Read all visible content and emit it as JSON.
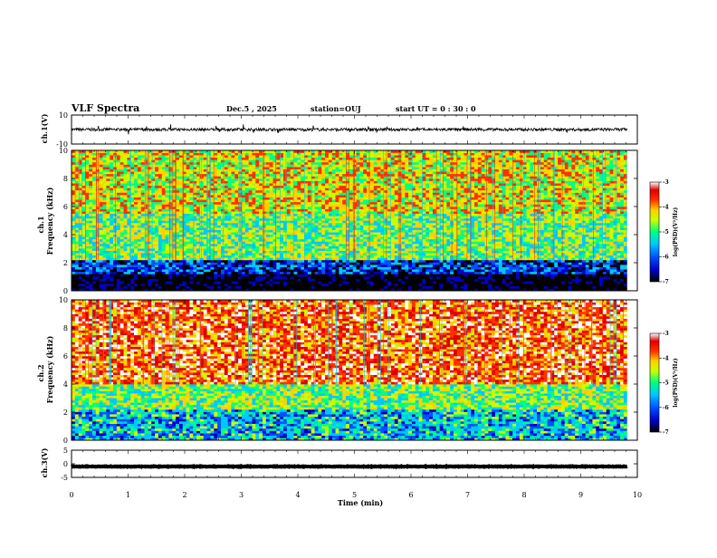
{
  "header": {
    "title": "VLF Spectra",
    "date": "Dec.5 , 2025",
    "station": "station=OUJ",
    "start": "start UT = 0 : 30 : 0"
  },
  "colors": {
    "scale": [
      "#000000",
      "#0000c8",
      "#0050ff",
      "#00c8ff",
      "#00ff80",
      "#c8ff00",
      "#ffd000",
      "#ff3000",
      "#e00000",
      "#ffffff"
    ]
  },
  "chart_data": [
    {
      "type": "line",
      "id": "ch1-waveform",
      "ylabel": "ch.1(V)",
      "ylim": [
        -10,
        10
      ],
      "yticks": [
        "10",
        "-10"
      ],
      "description_values": {
        "mean": 0,
        "amplitude": 1
      }
    },
    {
      "type": "heatmap",
      "id": "ch1-spectrogram",
      "ylabel": "ch.1 Frequency (kHz)",
      "ylim": [
        0,
        10
      ],
      "yticks": [
        "0",
        "2",
        "4",
        "6",
        "8",
        "10"
      ],
      "colorbar": {
        "label": "log(PSD)(V²/Hz)",
        "range": [
          -7,
          -3
        ],
        "ticks": [
          "-3",
          "-4",
          "-5",
          "-6",
          "-7"
        ]
      },
      "bands_khz": [
        {
          "from": 0,
          "to": 1.2,
          "level": -7
        },
        {
          "from": 1.2,
          "to": 2.2,
          "level": -6.2
        },
        {
          "from": 2.2,
          "to": 5.5,
          "level": -5.0
        },
        {
          "from": 5.5,
          "to": 10,
          "level": -4.6
        }
      ]
    },
    {
      "type": "heatmap",
      "id": "ch2-spectrogram",
      "ylabel": "ch.2 Frequency (kHz)",
      "ylim": [
        0,
        10
      ],
      "yticks": [
        "0",
        "2",
        "4",
        "6",
        "8",
        "10"
      ],
      "colorbar": {
        "label": "log(PSD)(V²/Hz)",
        "range": [
          -7,
          -3
        ],
        "ticks": [
          "-3",
          "-4",
          "-5",
          "-6",
          "-7"
        ]
      },
      "bands_khz": [
        {
          "from": 0,
          "to": 2.2,
          "level": -5.6
        },
        {
          "from": 2.2,
          "to": 4.0,
          "level": -5.0
        },
        {
          "from": 4.0,
          "to": 10,
          "level": -3.9
        }
      ]
    },
    {
      "type": "line",
      "id": "ch3-waveform",
      "ylabel": "ch.3(V)",
      "ylim": [
        -5,
        5
      ],
      "yticks": [
        "5",
        "0",
        "-5"
      ],
      "description_values": {
        "mean": -1,
        "amplitude": 0.1
      }
    }
  ],
  "xaxis": {
    "label": "Time (min)",
    "range": [
      0,
      10
    ],
    "data_end": 9.82,
    "ticks": [
      "0",
      "1",
      "2",
      "3",
      "4",
      "5",
      "6",
      "7",
      "8",
      "9",
      "10"
    ]
  }
}
